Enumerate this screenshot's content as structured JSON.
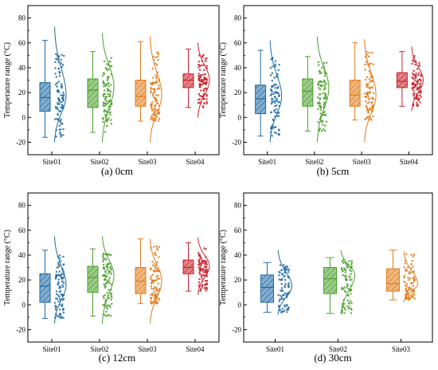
{
  "colors": {
    "Site01": "#1f6aa5",
    "Site02": "#4aa02c",
    "Site03": "#e07b1a",
    "Site04": "#c8202a"
  },
  "chart_data": [
    {
      "type": "box",
      "caption": "(a) 0cm",
      "ylabel": "Temperature range (°C)",
      "ylim": [
        -30,
        90
      ],
      "yticks": [
        -20,
        0,
        20,
        40,
        60,
        80
      ],
      "categories": [
        "Site01",
        "Site02",
        "Site03",
        "Site04"
      ],
      "boxes": [
        {
          "name": "Site01",
          "whisker_low": -16,
          "q1": 5,
          "median": 16,
          "q3": 28,
          "whisker_high": 62,
          "dist_min": -20,
          "dist_max": 73,
          "dist_mode": 18
        },
        {
          "name": "Site02",
          "whisker_low": -12,
          "q1": 8,
          "median": 22,
          "q3": 31,
          "whisker_high": 53,
          "dist_min": -20,
          "dist_max": 68,
          "dist_mode": 25
        },
        {
          "name": "Site03",
          "whisker_low": -3,
          "q1": 9,
          "median": 17,
          "q3": 30,
          "whisker_high": 61,
          "dist_min": -20,
          "dist_max": 65,
          "dist_mode": 18
        },
        {
          "name": "Site04",
          "whisker_low": 8,
          "q1": 24,
          "median": 30,
          "q3": 35,
          "whisker_high": 55,
          "dist_min": 0,
          "dist_max": 60,
          "dist_mode": 30
        }
      ]
    },
    {
      "type": "box",
      "caption": "(b) 5cm",
      "ylabel": "Temperature range (°C)",
      "ylim": [
        -30,
        90
      ],
      "yticks": [
        -20,
        0,
        20,
        40,
        60,
        80
      ],
      "categories": [
        "Site01",
        "Site02",
        "Site03",
        "Site04"
      ],
      "boxes": [
        {
          "name": "Site01",
          "whisker_low": -15,
          "q1": 3,
          "median": 15,
          "q3": 26,
          "whisker_high": 54,
          "dist_min": -20,
          "dist_max": 62,
          "dist_mode": 17
        },
        {
          "name": "Site02",
          "whisker_low": -11,
          "q1": 9,
          "median": 21,
          "q3": 31,
          "whisker_high": 49,
          "dist_min": -20,
          "dist_max": 65,
          "dist_mode": 24
        },
        {
          "name": "Site03",
          "whisker_low": -2,
          "q1": 9,
          "median": 18,
          "q3": 30,
          "whisker_high": 60,
          "dist_min": -20,
          "dist_max": 63,
          "dist_mode": 18
        },
        {
          "name": "Site04",
          "whisker_low": 9,
          "q1": 24,
          "median": 29,
          "q3": 36,
          "whisker_high": 53,
          "dist_min": 5,
          "dist_max": 57,
          "dist_mode": 30
        }
      ]
    },
    {
      "type": "box",
      "caption": "(c) 12cm",
      "ylabel": "Temperature range (°C)",
      "ylim": [
        -30,
        90
      ],
      "yticks": [
        -20,
        0,
        20,
        40,
        60,
        80
      ],
      "categories": [
        "Site01",
        "Site02",
        "Site03",
        "Site04"
      ],
      "boxes": [
        {
          "name": "Site01",
          "whisker_low": -11,
          "q1": 2,
          "median": 15,
          "q3": 25,
          "whisker_high": 44,
          "dist_min": -15,
          "dist_max": 55,
          "dist_mode": 16
        },
        {
          "name": "Site02",
          "whisker_low": -9,
          "q1": 10,
          "median": 22,
          "q3": 31,
          "whisker_high": 45,
          "dist_min": -15,
          "dist_max": 55,
          "dist_mode": 24
        },
        {
          "name": "Site03",
          "whisker_low": 1,
          "q1": 9,
          "median": 19,
          "q3": 30,
          "whisker_high": 53,
          "dist_min": -15,
          "dist_max": 53,
          "dist_mode": 19
        },
        {
          "name": "Site04",
          "whisker_low": 11,
          "q1": 25,
          "median": 30,
          "q3": 36,
          "whisker_high": 50,
          "dist_min": 8,
          "dist_max": 54,
          "dist_mode": 31
        }
      ]
    },
    {
      "type": "box",
      "caption": "(d) 30cm",
      "ylabel": "Temperature range (°C)",
      "ylim": [
        -30,
        90
      ],
      "yticks": [
        -20,
        0,
        20,
        40,
        60,
        80
      ],
      "categories": [
        "Site01",
        "Site02",
        "Site03"
      ],
      "boxes": [
        {
          "name": "Site01",
          "whisker_low": -6,
          "q1": 2,
          "median": 14,
          "q3": 24,
          "whisker_high": 34,
          "dist_min": -8,
          "dist_max": 44,
          "dist_mode": 15
        },
        {
          "name": "Site02",
          "whisker_low": -7,
          "q1": 9,
          "median": 21,
          "q3": 30,
          "whisker_high": 38,
          "dist_min": -8,
          "dist_max": 44,
          "dist_mode": 24
        },
        {
          "name": "Site03",
          "whisker_low": 4,
          "q1": 11,
          "median": 17,
          "q3": 29,
          "whisker_high": 44,
          "dist_min": 2,
          "dist_max": 43,
          "dist_mode": 17
        }
      ]
    }
  ]
}
